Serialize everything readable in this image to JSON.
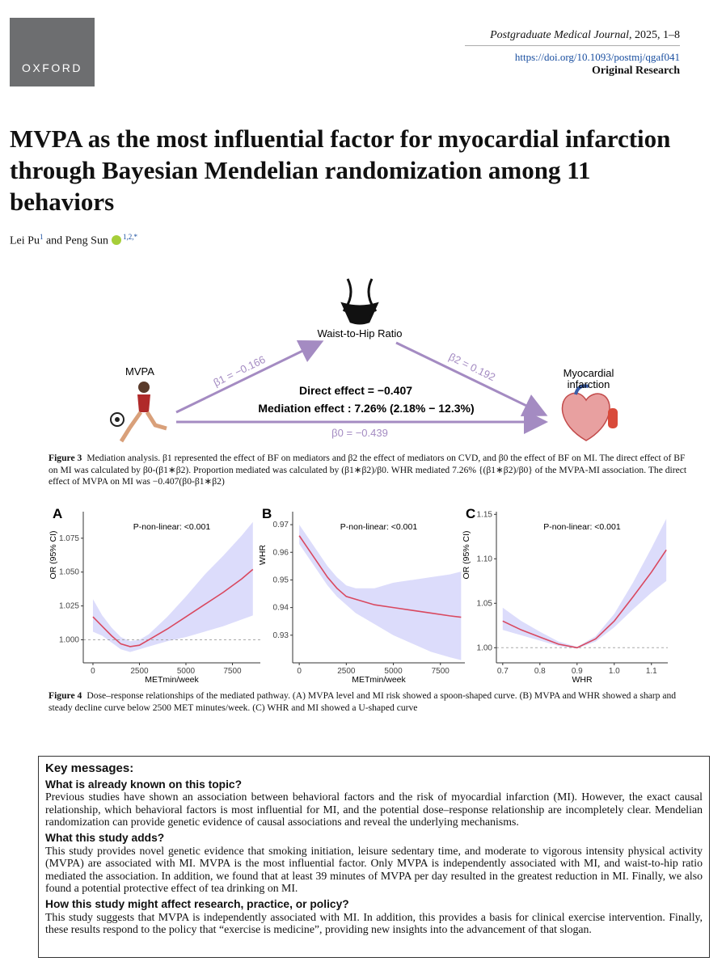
{
  "header": {
    "publisher": "OXFORD",
    "journal": "Postgraduate Medical Journal",
    "journal_info": ", 2025, 1–8",
    "doi": "https://doi.org/10.1093/postmj/qgaf041",
    "article_type": "Original Research"
  },
  "title": "MVPA as the most influential factor for myocardial infarction through Bayesian Mendelian randomization among 11 behaviors",
  "authors": [
    {
      "name": "Lei Pu",
      "affiliations": "1"
    },
    {
      "name": "Peng Sun",
      "affiliations": "1,2,*"
    }
  ],
  "author_separator": "and",
  "figure3": {
    "mediator": "Waist-to-Hip Ratio",
    "exposure": "MVPA",
    "outcome_line1": "Myocardial",
    "outcome_line2": "infarction",
    "beta1": "β1 = −0.166",
    "beta2": "β2 = 0.192",
    "beta0": "β0 = −0.439",
    "direct": "Direct effect = −0.407",
    "mediation": "Mediation effect : 7.26% (2.18% − 12.3%)",
    "caption_label": "Figure 3",
    "caption": "Mediation analysis. β1 represented the effect of BF on mediators and β2 the effect of mediators on CVD, and β0 the effect of BF on MI. The direct effect of BF on MI was calculated by β0-(β1∗β2). Proportion mediated was calculated by (β1∗β2)/β0. WHR mediated 7.26% {(β1∗β2)/β0} of the MVPA-MI association. The direct effect of MVPA on MI was −0.407(β0-β1∗β2)"
  },
  "chart_data": [
    {
      "type": "line",
      "panel": "A",
      "annotation": "P-non-linear: <0.001",
      "xlabel": "METmin/week",
      "ylabel": "OR (95% CI)",
      "x": [
        0,
        500,
        1000,
        1500,
        2000,
        2500,
        3000,
        4000,
        5000,
        6000,
        7000,
        8000,
        8600
      ],
      "series": [
        {
          "color": "#d9485f",
          "band_color": "#dcdcfb",
          "values": [
            1.017,
            1.01,
            1.003,
            0.997,
            0.995,
            0.996,
            1.0,
            1.008,
            1.017,
            1.026,
            1.035,
            1.045,
            1.052
          ],
          "ci_lower": [
            1.006,
            1.003,
            0.998,
            0.993,
            0.991,
            0.993,
            0.995,
            0.999,
            1.002,
            1.006,
            1.01,
            1.015,
            1.018
          ],
          "ci_upper": [
            1.03,
            1.018,
            1.009,
            1.002,
            0.999,
            1.0,
            1.004,
            1.017,
            1.032,
            1.048,
            1.062,
            1.077,
            1.087
          ]
        }
      ],
      "xlim": [
        -520,
        9000
      ],
      "ylim": [
        0.983,
        1.0946
      ],
      "xticks": [
        0,
        2500,
        5000,
        7500
      ],
      "yticks": [
        {
          "value": 1,
          "label": "1.000"
        },
        1.025,
        {
          "value": 1.05,
          "label": "1.050"
        },
        1.075
      ],
      "reference_line": 1
    },
    {
      "type": "line",
      "panel": "B",
      "annotation": "P-non-linear: <0.001",
      "xlabel": "METmin/week",
      "ylabel": "WHR",
      "x": [
        0,
        500,
        1000,
        1500,
        2000,
        2500,
        3000,
        4000,
        5000,
        6000,
        7000,
        8000,
        8600
      ],
      "series": [
        {
          "color": "#d9485f",
          "band_color": "#dcdcfb",
          "values": [
            0.966,
            0.961,
            0.956,
            0.951,
            0.947,
            0.944,
            0.943,
            0.941,
            0.94,
            0.939,
            0.938,
            0.937,
            0.9365
          ],
          "ci_lower": [
            0.963,
            0.958,
            0.953,
            0.948,
            0.944,
            0.941,
            0.938,
            0.934,
            0.93,
            0.927,
            0.924,
            0.922,
            0.921
          ],
          "ci_upper": [
            0.97,
            0.965,
            0.96,
            0.955,
            0.951,
            0.948,
            0.947,
            0.947,
            0.949,
            0.95,
            0.951,
            0.952,
            0.953
          ]
        }
      ],
      "xlim": [
        -350,
        8800
      ],
      "ylim": [
        0.92,
        0.9747
      ],
      "xticks": [
        0,
        2500,
        5000,
        7500
      ],
      "yticks": [
        0.93,
        0.94,
        0.95,
        0.96,
        0.97
      ]
    },
    {
      "type": "line",
      "panel": "C",
      "annotation": "P-non-linear: <0.001",
      "xlabel": "WHR",
      "ylabel": "OR (95% CI)",
      "x": [
        0.7,
        0.75,
        0.8,
        0.85,
        0.9,
        0.95,
        1.0,
        1.05,
        1.1,
        1.14
      ],
      "series": [
        {
          "color": "#d9485f",
          "band_color": "#dcdcfb",
          "values": [
            1.03,
            1.02,
            1.012,
            1.004,
            1.0,
            1.01,
            1.03,
            1.057,
            1.085,
            1.11
          ],
          "ci_lower": [
            1.02,
            1.014,
            1.008,
            1.002,
            0.999,
            1.007,
            1.023,
            1.043,
            1.062,
            1.075
          ],
          "ci_upper": [
            1.045,
            1.03,
            1.018,
            1.007,
            1.001,
            1.013,
            1.038,
            1.073,
            1.112,
            1.145
          ]
        }
      ],
      "xlim": [
        0.683,
        1.144
      ],
      "ylim": [
        0.983,
        1.153
      ],
      "xticks": [
        0.7,
        0.8,
        0.9,
        {
          "value": 1,
          "label": "1.0"
        },
        1.1
      ],
      "yticks": [
        {
          "value": 1,
          "label": "1.00"
        },
        1.05,
        {
          "value": 1.1,
          "label": "1.10"
        },
        1.15
      ],
      "reference_line": 1
    }
  ],
  "figure4": {
    "caption_label": "Figure 4",
    "caption": "Dose–response relationships of the mediated pathway. (A) MVPA level and MI risk showed a spoon-shaped curve. (B) MVPA and WHR showed a sharp and steady decline curve below 2500 MET minutes/week. (C) WHR and MI showed a U-shaped curve"
  },
  "key_messages": {
    "heading": "Key messages:",
    "sections": [
      {
        "heading": "What is already known on this topic?",
        "text": "Previous studies have shown an association between behavioral factors and the risk of myocardial infarction (MI). However, the exact causal relationship, which behavioral factors is most influential for MI, and the potential dose–response relationship are incompletely clear. Mendelian randomization can provide genetic evidence of causal associations and reveal the underlying mechanisms."
      },
      {
        "heading": "What this study adds?",
        "text": "This study provides novel genetic evidence that smoking initiation, leisure sedentary time, and moderate to vigorous intensity physical activity (MVPA) are associated with MI. MVPA is the most influential factor. Only MVPA is independently associated with MI, and waist-to-hip ratio mediated the association. In addition, we found that at least 39 minutes of MVPA per day resulted in the greatest reduction in MI. Finally, we also found a potential protective effect of tea drinking on MI."
      },
      {
        "heading": "How this study might affect research, practice, or policy?",
        "text": "This study suggests that MVPA is independently associated with MI. In addition, this provides a basis for clinical exercise intervention. Finally, these results respond to the policy that “exercise is medicine”, providing new insights into the advancement of that slogan."
      }
    ]
  }
}
